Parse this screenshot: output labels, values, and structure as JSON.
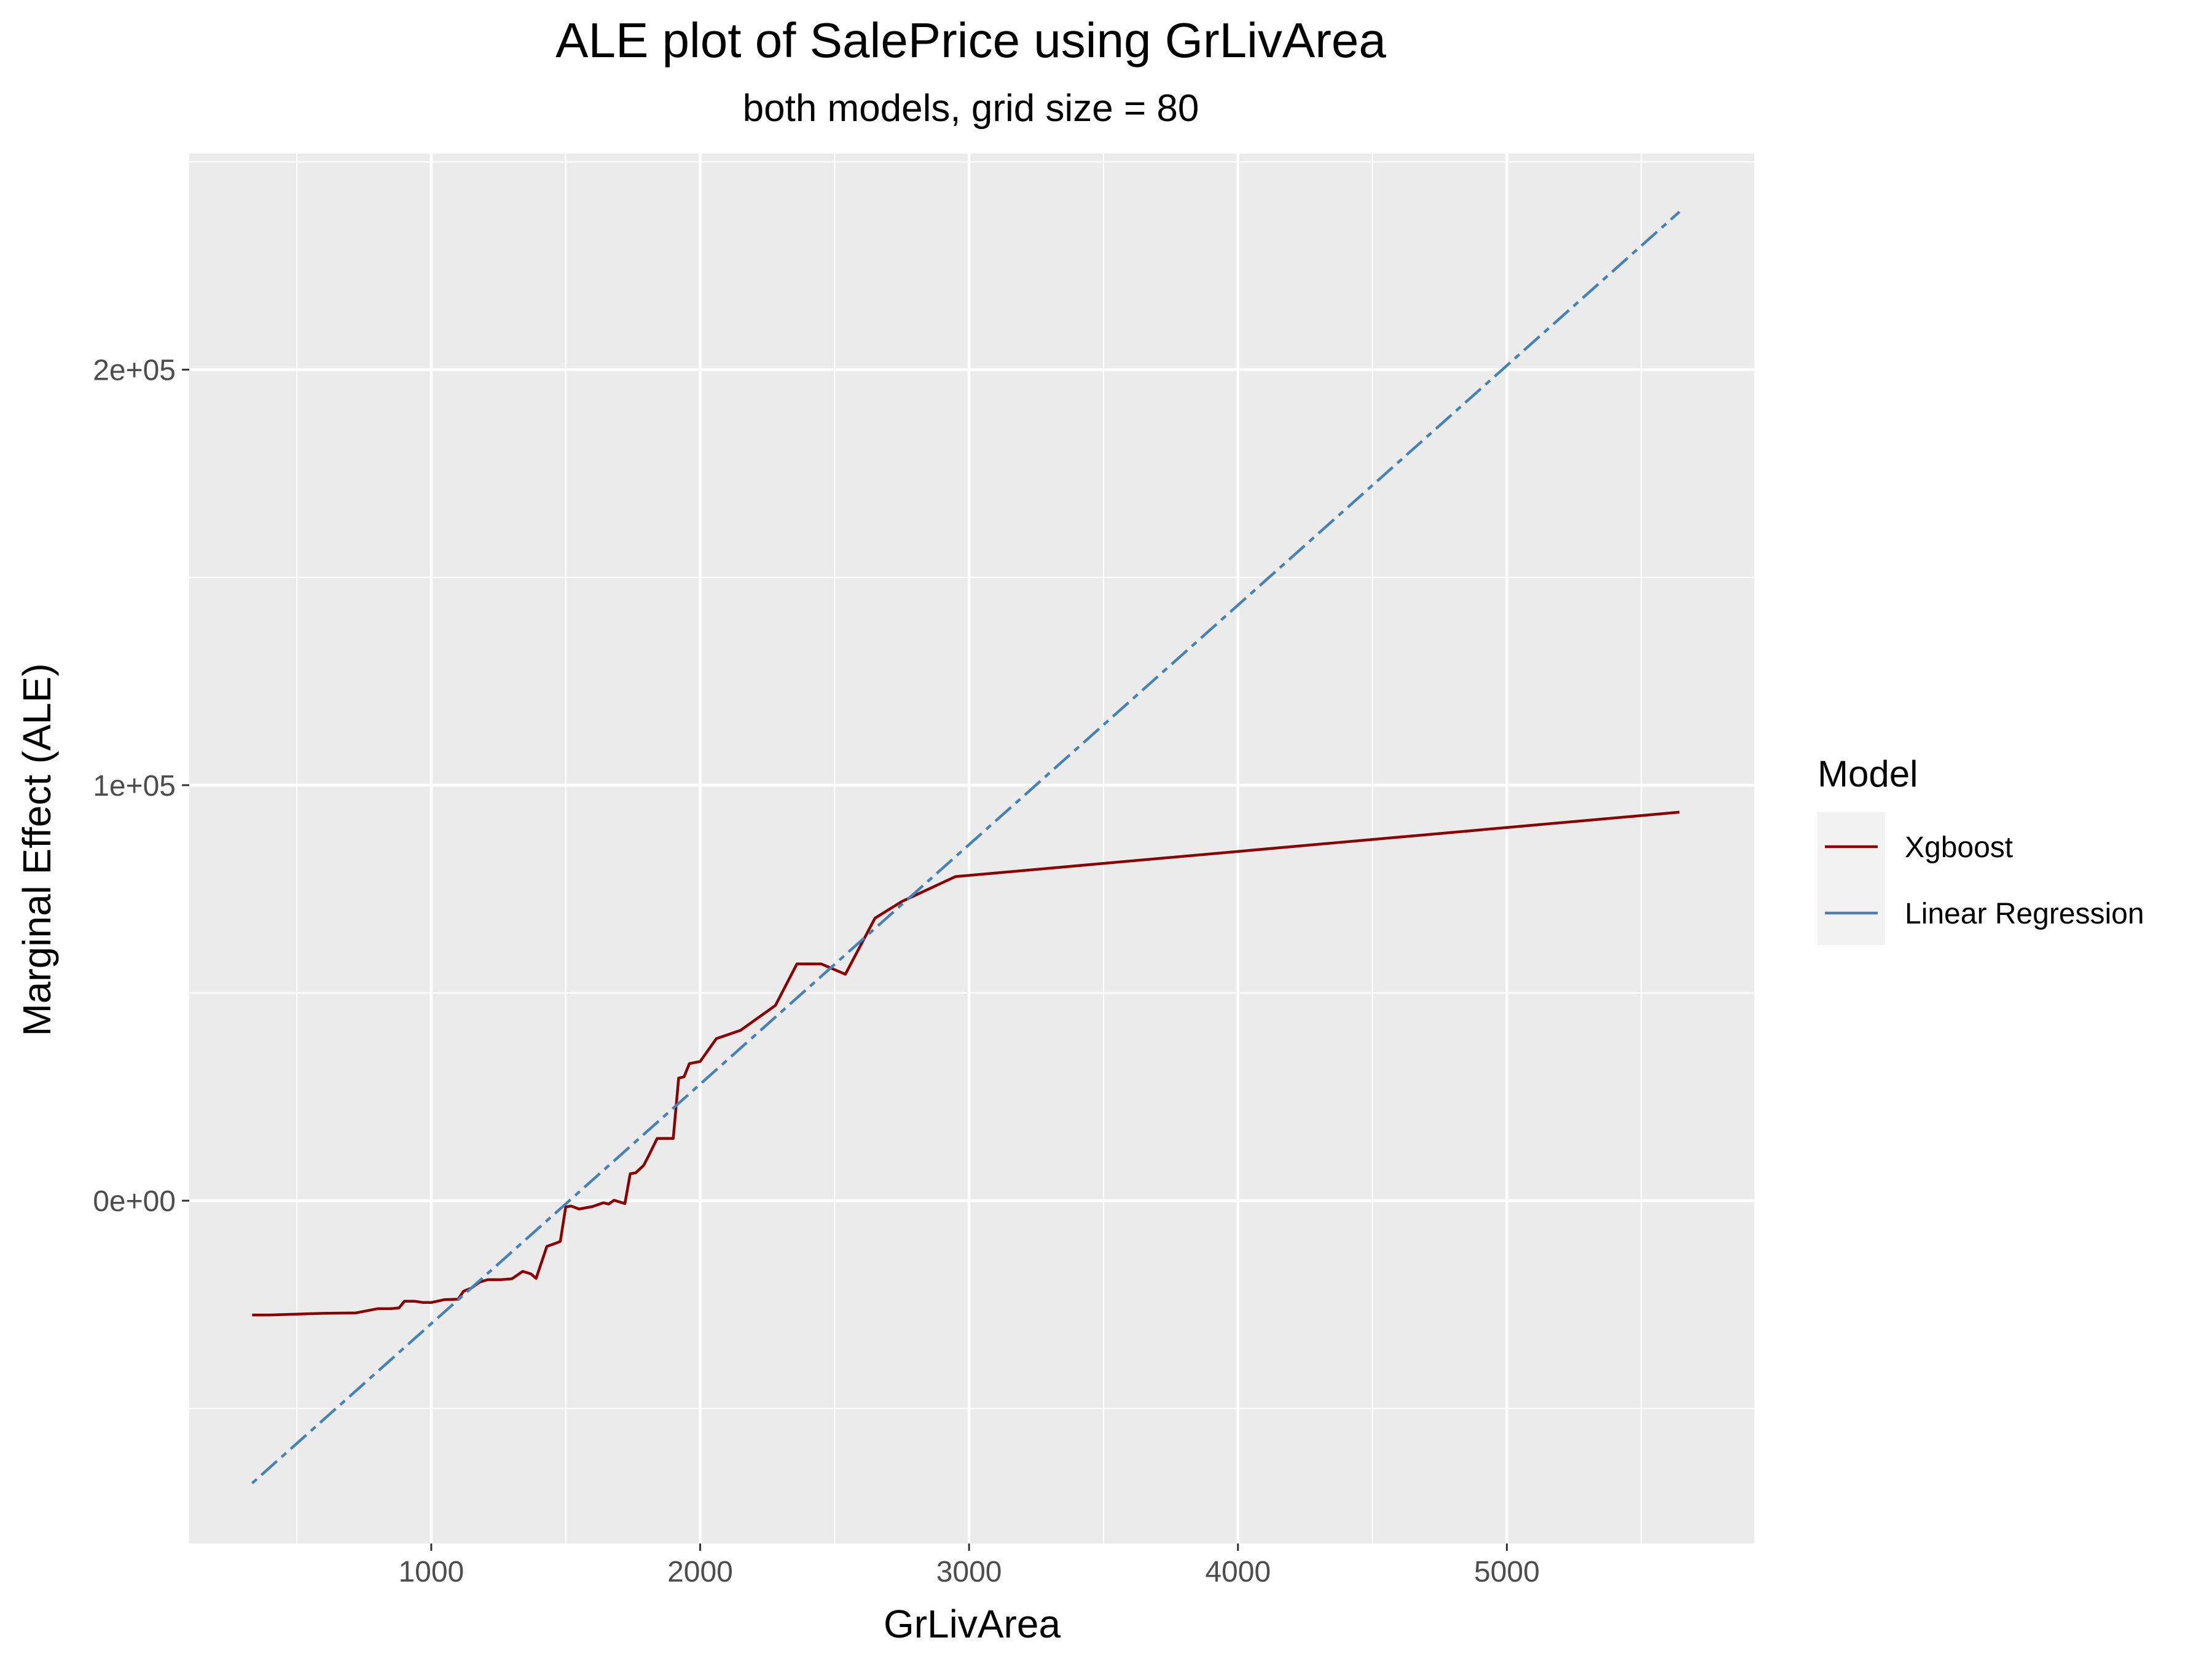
{
  "chart_data": {
    "type": "line",
    "title": "ALE plot of SalePrice using GrLivArea",
    "subtitle": "both models, grid size = 80",
    "xlabel": "GrLivArea",
    "ylabel": "Marginal Effect (ALE)",
    "xlim": [
      100,
      5920
    ],
    "ylim": [
      -82500,
      252000
    ],
    "x_ticks": [
      1000,
      2000,
      3000,
      4000,
      5000
    ],
    "x_tick_labels": [
      "1000",
      "2000",
      "3000",
      "4000",
      "5000"
    ],
    "y_ticks": [
      0,
      100000,
      200000
    ],
    "y_tick_labels": [
      "0e+00",
      "1e+05",
      "2e+05"
    ],
    "grid": true,
    "legend": {
      "title": "Model",
      "position": "right"
    },
    "series": [
      {
        "name": "Xgboost",
        "color": "#8B0000",
        "line_style": "solid",
        "points": [
          [
            334,
            -27500
          ],
          [
            400,
            -27500
          ],
          [
            500,
            -27300
          ],
          [
            600,
            -27100
          ],
          [
            720,
            -27000
          ],
          [
            800,
            -26000
          ],
          [
            850,
            -26000
          ],
          [
            880,
            -25800
          ],
          [
            900,
            -24200
          ],
          [
            940,
            -24200
          ],
          [
            970,
            -24500
          ],
          [
            1000,
            -24500
          ],
          [
            1050,
            -23800
          ],
          [
            1100,
            -23700
          ],
          [
            1120,
            -21800
          ],
          [
            1150,
            -21000
          ],
          [
            1180,
            -19600
          ],
          [
            1210,
            -19000
          ],
          [
            1260,
            -19000
          ],
          [
            1300,
            -18800
          ],
          [
            1340,
            -17000
          ],
          [
            1370,
            -17600
          ],
          [
            1390,
            -18700
          ],
          [
            1430,
            -11000
          ],
          [
            1460,
            -10300
          ],
          [
            1480,
            -9800
          ],
          [
            1500,
            -1500
          ],
          [
            1520,
            -1300
          ],
          [
            1550,
            -2000
          ],
          [
            1600,
            -1400
          ],
          [
            1640,
            -500
          ],
          [
            1660,
            -800
          ],
          [
            1680,
            100
          ],
          [
            1720,
            -700
          ],
          [
            1740,
            6500
          ],
          [
            1760,
            6700
          ],
          [
            1790,
            8500
          ],
          [
            1810,
            11000
          ],
          [
            1840,
            15000
          ],
          [
            1900,
            15000
          ],
          [
            1920,
            29500
          ],
          [
            1940,
            29800
          ],
          [
            1960,
            33000
          ],
          [
            2000,
            33500
          ],
          [
            2060,
            39000
          ],
          [
            2150,
            41000
          ],
          [
            2280,
            47000
          ],
          [
            2360,
            57000
          ],
          [
            2450,
            57000
          ],
          [
            2540,
            54500
          ],
          [
            2650,
            68000
          ],
          [
            2750,
            72000
          ],
          [
            2950,
            78000
          ],
          [
            5642,
            93500
          ]
        ]
      },
      {
        "name": "Linear Regression",
        "color": "#4682B4",
        "line_style": "dashdot",
        "points": [
          [
            334,
            -68000
          ],
          [
            5642,
            238000
          ]
        ]
      }
    ]
  }
}
